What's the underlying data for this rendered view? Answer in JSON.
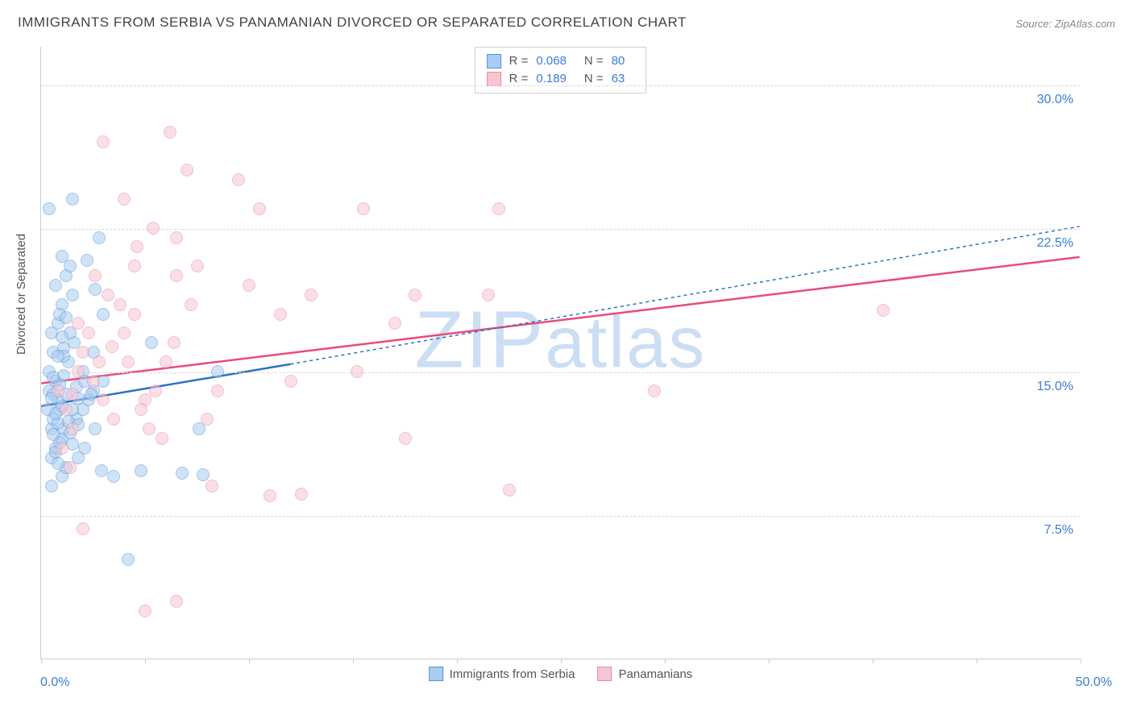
{
  "title": "IMMIGRANTS FROM SERBIA VS PANAMANIAN DIVORCED OR SEPARATED CORRELATION CHART",
  "source": "Source: ZipAtlas.com",
  "watermark": "ZIPatlas",
  "ylabel": "Divorced or Separated",
  "chart": {
    "type": "scatter",
    "background_color": "#ffffff",
    "grid_color": "#d8d8d8",
    "axis_color": "#cccccc",
    "label_color": "#3b7dd8",
    "text_color": "#555555",
    "xlim": [
      0,
      50
    ],
    "ylim": [
      0,
      32
    ],
    "xticks": [
      0,
      5,
      10,
      15,
      20,
      25,
      30,
      35,
      40,
      45,
      50
    ],
    "xtick_labels": {
      "0": "0.0%",
      "50": "50.0%"
    },
    "yticks": [
      7.5,
      15.0,
      22.5,
      30.0
    ],
    "ytick_labels": [
      "7.5%",
      "15.0%",
      "22.5%",
      "30.0%"
    ],
    "point_radius": 8,
    "point_opacity": 0.55,
    "series": [
      {
        "name": "Immigrants from Serbia",
        "fill_color": "#a9cdf2",
        "stroke_color": "#5b93d6",
        "trend_color": "#2b6fc9",
        "trend_width": 2.5,
        "trend_dash_extrapolate": "4 4",
        "R": 0.068,
        "N": 80,
        "trend": {
          "x1": 0,
          "y1": 13.2,
          "x2_solid": 12,
          "y2_solid": 15.4,
          "x2": 50,
          "y2": 22.6
        },
        "points": [
          [
            0.3,
            13.0
          ],
          [
            0.5,
            12.0
          ],
          [
            0.7,
            11.0
          ],
          [
            0.4,
            14.0
          ],
          [
            0.6,
            12.5
          ],
          [
            0.8,
            13.5
          ],
          [
            1.0,
            11.5
          ],
          [
            0.5,
            10.5
          ],
          [
            0.7,
            14.5
          ],
          [
            0.9,
            13.0
          ],
          [
            1.1,
            12.0
          ],
          [
            0.4,
            15.0
          ],
          [
            0.6,
            16.0
          ],
          [
            0.8,
            17.5
          ],
          [
            1.0,
            18.5
          ],
          [
            1.5,
            19.0
          ],
          [
            1.2,
            20.0
          ],
          [
            1.4,
            20.5
          ],
          [
            1.0,
            21.0
          ],
          [
            0.7,
            19.5
          ],
          [
            0.9,
            18.0
          ],
          [
            0.5,
            17.0
          ],
          [
            0.6,
            13.8
          ],
          [
            0.8,
            12.3
          ],
          [
            1.1,
            14.8
          ],
          [
            1.3,
            15.5
          ],
          [
            1.6,
            16.5
          ],
          [
            1.0,
            9.5
          ],
          [
            1.2,
            10.0
          ],
          [
            0.5,
            9.0
          ],
          [
            0.7,
            10.8
          ],
          [
            0.9,
            11.3
          ],
          [
            1.4,
            11.8
          ],
          [
            1.7,
            12.5
          ],
          [
            2.0,
            13.0
          ],
          [
            2.3,
            13.5
          ],
          [
            2.6,
            12.0
          ],
          [
            2.1,
            11.0
          ],
          [
            1.8,
            10.5
          ],
          [
            2.5,
            14.0
          ],
          [
            0.4,
            23.5
          ],
          [
            1.5,
            24.0
          ],
          [
            2.8,
            22.0
          ],
          [
            1.0,
            13.2
          ],
          [
            1.2,
            13.8
          ],
          [
            0.6,
            11.7
          ],
          [
            0.8,
            10.2
          ],
          [
            1.1,
            16.2
          ],
          [
            1.4,
            17.0
          ],
          [
            1.7,
            14.2
          ],
          [
            2.0,
            15.0
          ],
          [
            2.4,
            13.8
          ],
          [
            2.9,
            9.8
          ],
          [
            3.5,
            9.5
          ],
          [
            4.2,
            5.2
          ],
          [
            4.8,
            9.8
          ],
          [
            5.3,
            16.5
          ],
          [
            6.8,
            9.7
          ],
          [
            7.6,
            12.0
          ],
          [
            7.8,
            9.6
          ],
          [
            8.5,
            15.0
          ],
          [
            2.2,
            20.8
          ],
          [
            2.6,
            19.3
          ],
          [
            3.0,
            18.0
          ],
          [
            0.5,
            13.6
          ],
          [
            0.7,
            12.8
          ],
          [
            0.9,
            14.3
          ],
          [
            1.1,
            15.8
          ],
          [
            1.3,
            12.4
          ],
          [
            1.5,
            11.2
          ],
          [
            1.8,
            13.6
          ],
          [
            0.6,
            14.7
          ],
          [
            0.8,
            15.8
          ],
          [
            1.0,
            16.8
          ],
          [
            1.2,
            17.8
          ],
          [
            1.5,
            13.0
          ],
          [
            1.8,
            12.2
          ],
          [
            2.1,
            14.5
          ],
          [
            2.5,
            16.0
          ],
          [
            3.0,
            14.5
          ]
        ]
      },
      {
        "name": "Panamanians",
        "fill_color": "#f7c6d4",
        "stroke_color": "#e78ca5",
        "trend_color": "#e94b7a",
        "trend_width": 2.5,
        "R": 0.189,
        "N": 63,
        "trend": {
          "x1": 0,
          "y1": 14.4,
          "x2": 50,
          "y2": 21.0
        },
        "points": [
          [
            0.8,
            14.0
          ],
          [
            1.2,
            13.0
          ],
          [
            1.5,
            12.0
          ],
          [
            1.8,
            15.0
          ],
          [
            2.0,
            16.0
          ],
          [
            2.5,
            14.5
          ],
          [
            3.0,
            13.5
          ],
          [
            3.5,
            12.5
          ],
          [
            4.0,
            17.0
          ],
          [
            4.5,
            18.0
          ],
          [
            5.0,
            13.5
          ],
          [
            5.5,
            14.0
          ],
          [
            6.0,
            15.5
          ],
          [
            6.5,
            20.0
          ],
          [
            7.0,
            25.5
          ],
          [
            7.5,
            20.5
          ],
          [
            6.2,
            27.5
          ],
          [
            8.0,
            12.5
          ],
          [
            8.2,
            9.0
          ],
          [
            8.5,
            14.0
          ],
          [
            9.5,
            25.0
          ],
          [
            10.5,
            23.5
          ],
          [
            12.0,
            14.5
          ],
          [
            11.0,
            8.5
          ],
          [
            10.0,
            19.5
          ],
          [
            11.5,
            18.0
          ],
          [
            12.5,
            8.6
          ],
          [
            13.0,
            19.0
          ],
          [
            15.2,
            15.0
          ],
          [
            15.5,
            23.5
          ],
          [
            17.0,
            17.5
          ],
          [
            17.5,
            11.5
          ],
          [
            18.0,
            19.0
          ],
          [
            21.5,
            19.0
          ],
          [
            22.0,
            23.5
          ],
          [
            22.5,
            8.8
          ],
          [
            2.6,
            20.0
          ],
          [
            3.2,
            19.0
          ],
          [
            3.8,
            18.5
          ],
          [
            4.2,
            15.5
          ],
          [
            4.8,
            13.0
          ],
          [
            5.2,
            12.0
          ],
          [
            5.8,
            11.5
          ],
          [
            6.4,
            16.5
          ],
          [
            3.0,
            27.0
          ],
          [
            4.0,
            24.0
          ],
          [
            6.5,
            22.0
          ],
          [
            7.2,
            18.5
          ],
          [
            4.5,
            20.5
          ],
          [
            1.8,
            17.5
          ],
          [
            2.3,
            17.0
          ],
          [
            2.8,
            15.5
          ],
          [
            3.4,
            16.3
          ],
          [
            4.6,
            21.5
          ],
          [
            5.4,
            22.5
          ],
          [
            1.5,
            13.8
          ],
          [
            2.0,
            6.8
          ],
          [
            5.0,
            2.5
          ],
          [
            6.5,
            3.0
          ],
          [
            29.5,
            14.0
          ],
          [
            40.5,
            18.2
          ],
          [
            1.0,
            11.0
          ],
          [
            1.4,
            10.0
          ]
        ]
      }
    ]
  },
  "legend_top": [
    {
      "swatch_fill": "#a9cdf2",
      "swatch_stroke": "#5b93d6",
      "r_label": "R =",
      "r_val": "0.068",
      "n_label": "N =",
      "n_val": "80"
    },
    {
      "swatch_fill": "#f7c6d4",
      "swatch_stroke": "#e78ca5",
      "r_label": "R =",
      "r_val": " 0.189",
      "n_label": "N =",
      "n_val": " 63"
    }
  ],
  "legend_bottom": [
    {
      "swatch_fill": "#a9cdf2",
      "swatch_stroke": "#5b93d6",
      "label": "Immigrants from Serbia"
    },
    {
      "swatch_fill": "#f7c6d4",
      "swatch_stroke": "#e78ca5",
      "label": "Panamanians"
    }
  ]
}
